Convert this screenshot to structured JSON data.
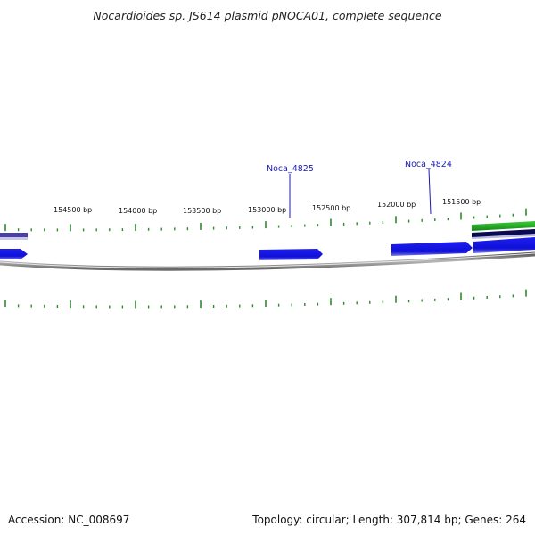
{
  "title": "Nocardioides sp. JS614 plasmid pNOCA01, complete sequence",
  "footer": {
    "accession": "Accession: NC_008697",
    "summary": "Topology: circular; Length: 307,814 bp; Genes: 264"
  },
  "colors": {
    "backbone": "#8a8a8a",
    "tick": "#2e8b2e",
    "gene_forward": "#1414e6",
    "gene_other": "#22aa22",
    "gene_dark": "#0a0a50",
    "label": "#1a1ab8"
  },
  "scale_labels": [
    "154500 bp",
    "154000 bp",
    "153500 bp",
    "153000 bp",
    "152500 bp",
    "152000 bp",
    "151500 bp"
  ],
  "gene_labels": [
    "Noca_4825",
    "Noca_4824"
  ]
}
